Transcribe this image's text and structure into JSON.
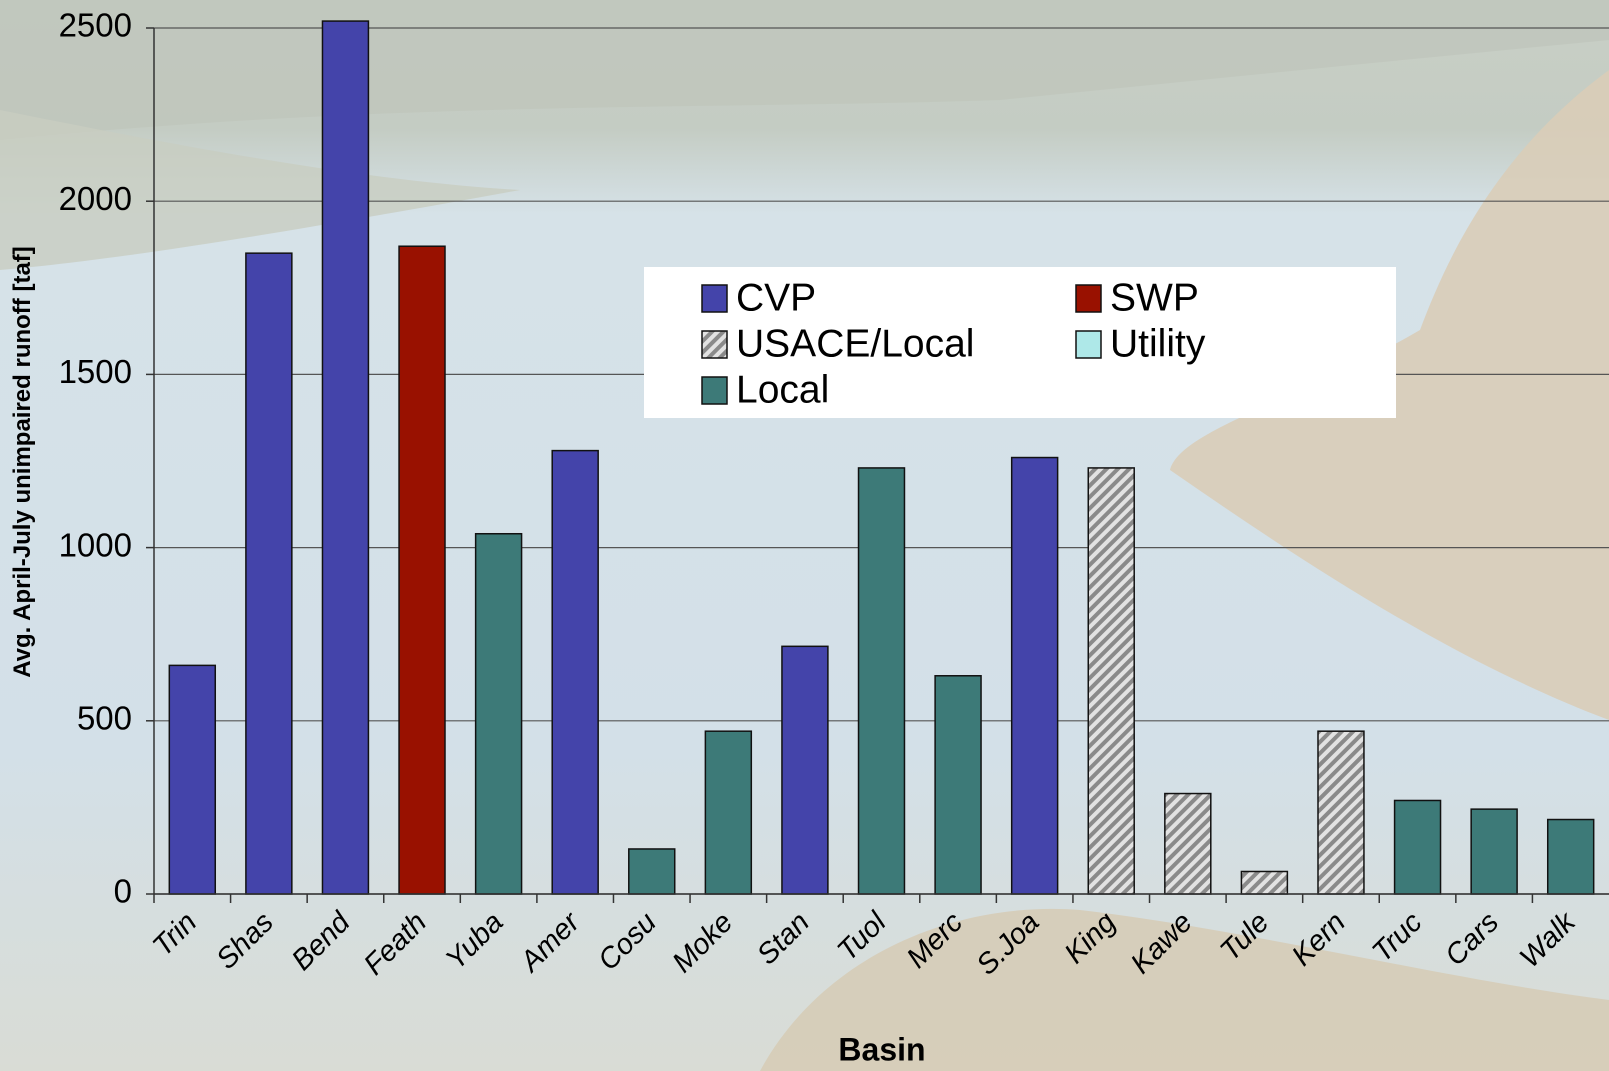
{
  "chart_data": {
    "type": "bar",
    "x_label": "Basin",
    "y_label": "Avg. April-July unimpaired runoff [taf]",
    "categories": [
      "Trin",
      "Shas",
      "Bend",
      "Feath",
      "Yuba",
      "Amer",
      "Cosu",
      "Moke",
      "Stan",
      "Tuol",
      "Merc",
      "S.Joa",
      "King",
      "Kawe",
      "Tule",
      "Kern",
      "Truc",
      "Cars",
      "Walk"
    ],
    "series": [
      {
        "name": "CVP",
        "color": "#4444aa",
        "values": [
          660,
          1850,
          2520,
          null,
          null,
          1280,
          null,
          null,
          715,
          null,
          null,
          1260,
          null,
          null,
          null,
          null,
          null,
          null,
          null
        ]
      },
      {
        "name": "SWP",
        "color": "#991100",
        "values": [
          null,
          null,
          null,
          1870,
          null,
          null,
          null,
          null,
          null,
          null,
          null,
          null,
          null,
          null,
          null,
          null,
          null,
          null,
          null
        ]
      },
      {
        "name": "USACE/Local",
        "color": "#b8b8b8",
        "hatch": true,
        "values": [
          null,
          null,
          null,
          null,
          null,
          null,
          null,
          null,
          null,
          null,
          null,
          null,
          1230,
          290,
          65,
          470,
          null,
          null,
          null
        ]
      },
      {
        "name": "Utility",
        "color": "#aee8e8",
        "values": [
          null,
          null,
          null,
          null,
          null,
          null,
          null,
          null,
          null,
          null,
          null,
          null,
          null,
          null,
          null,
          null,
          null,
          null,
          null
        ]
      },
      {
        "name": "Local",
        "color": "#3d7a78",
        "values": [
          null,
          null,
          null,
          null,
          1040,
          null,
          130,
          470,
          null,
          1230,
          630,
          null,
          null,
          null,
          null,
          null,
          270,
          245,
          215
        ]
      }
    ],
    "ylim": [
      0,
      2500
    ],
    "yticks": [
      0,
      500,
      1000,
      1500,
      2000,
      2500
    ],
    "grid": true
  }
}
